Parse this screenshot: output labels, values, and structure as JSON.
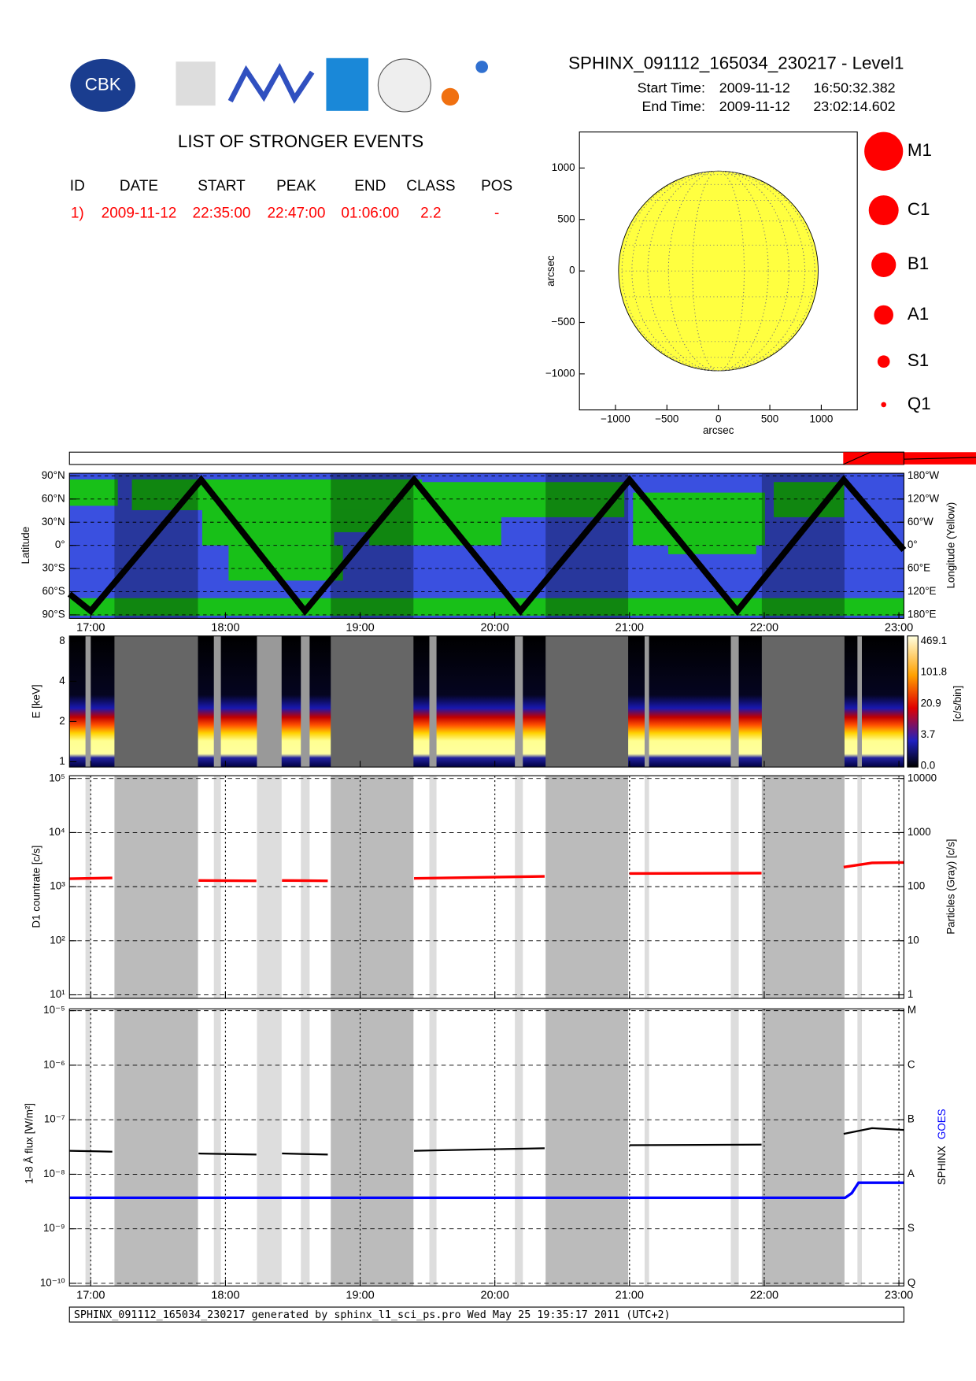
{
  "chart_data": {
    "type": "solar-report",
    "header": {
      "title": "SPHINX_091112_165034_230217 - Level1",
      "start_label": "Start Time:",
      "start_date": "2009-11-12",
      "start_time": "16:50:32.382",
      "end_label": "End Time:",
      "end_date": "2009-11-12",
      "end_time": "23:02:14.602",
      "logo_text": "CBK"
    },
    "events": {
      "title": "LIST OF STRONGER EVENTS",
      "columns": [
        "ID",
        "DATE",
        "START",
        "PEAK",
        "END",
        "CLASS",
        "POS"
      ],
      "rows": [
        [
          "1)",
          "2009-11-12",
          "22:35:00",
          "22:47:00",
          "01:06:00",
          "2.2",
          "-"
        ]
      ]
    },
    "sun_plot": {
      "xlabel": "arcsec",
      "ylabel": "arcsec",
      "xlim": [
        -1350,
        1350
      ],
      "ylim": [
        -1350,
        1350
      ],
      "xticks": [
        {
          "value": -1000,
          "label": "−1000"
        },
        {
          "value": -500,
          "label": "−500"
        },
        0,
        500,
        1000
      ],
      "yticks": [
        {
          "value": -1000,
          "label": "−1000"
        },
        {
          "value": -500,
          "label": "−500"
        },
        0,
        500,
        1000
      ],
      "disk_radius": 970,
      "disk_color": "#ffff40",
      "legend": [
        "M1",
        "C1",
        "B1",
        "A1",
        "S1",
        "Q1"
      ],
      "legend_color": "#ff0000"
    },
    "time": {
      "xlim": [
        16.842,
        23.037
      ],
      "xticks": [
        {
          "value": 17,
          "label": "17:00"
        },
        {
          "value": 18,
          "label": "18:00"
        },
        {
          "value": 19,
          "label": "19:00"
        },
        {
          "value": 20,
          "label": "20:00"
        },
        {
          "value": 21,
          "label": "21:00"
        },
        {
          "value": 22,
          "label": "22:00"
        },
        {
          "value": 23,
          "label": "23:00"
        }
      ],
      "eclipse_intervals": [
        [
          17.176,
          17.796
        ],
        [
          18.782,
          19.396
        ],
        [
          20.377,
          20.99
        ],
        [
          21.982,
          22.596
        ]
      ],
      "gap_intervals": [
        [
          16.961,
          17.0
        ],
        [
          17.914,
          17.966
        ],
        [
          18.234,
          18.417
        ],
        [
          18.56,
          18.625
        ],
        [
          19.514,
          19.567
        ],
        [
          20.149,
          20.208
        ],
        [
          21.112,
          21.145
        ],
        [
          21.752,
          21.811
        ],
        [
          22.692,
          22.725
        ]
      ]
    },
    "orbit": {
      "ylabel": "Latitude",
      "y2label": "Longitude (Yellow)",
      "ylim": [
        -90,
        90
      ],
      "y2lim": [
        180,
        -180
      ],
      "yticks": [
        {
          "value": 90,
          "label": "90°N"
        },
        {
          "value": 60,
          "label": "60°N"
        },
        {
          "value": 30,
          "label": "30°N"
        },
        {
          "value": 0,
          "label": "0°"
        },
        {
          "value": -30,
          "label": "30°S"
        },
        {
          "value": -60,
          "label": "60°S"
        },
        {
          "value": -90,
          "label": "90°S"
        }
      ],
      "y2ticks": [
        {
          "value": -180,
          "label": "180°W"
        },
        {
          "value": -120,
          "label": "120°W"
        },
        {
          "value": -60,
          "label": "60°W"
        },
        {
          "value": 0,
          "label": "0°"
        },
        {
          "value": 60,
          "label": "60°E"
        },
        {
          "value": 120,
          "label": "120°E"
        },
        {
          "value": 180,
          "label": "180°E"
        }
      ],
      "x": [
        16.842,
        17.0,
        17.82,
        18.59,
        19.4,
        20.19,
        21.0,
        21.8,
        22.59,
        23.037
      ],
      "latitude": [
        -63,
        -85,
        85,
        -85,
        85,
        -85,
        85,
        -85,
        85,
        -6
      ]
    },
    "spectrum": {
      "ylabel": "E [keV]",
      "ylim": [
        0.913,
        8.74
      ],
      "yticks": [
        1,
        2,
        4,
        8
      ],
      "colorbar_label": "[c/s/bin]",
      "colorbar_ticks": [
        469.1,
        101.8,
        20.9,
        3.7,
        {
          "value": 0,
          "label": "0.0"
        }
      ]
    },
    "countrate": {
      "ylabel": "D1 countrate [c/s]",
      "y2label": "Particles (Gray) [c/s]",
      "ylim": [
        10,
        100000
      ],
      "y2lim": [
        1,
        10000
      ],
      "yticks": [
        {
          "value": 10,
          "label": "10¹"
        },
        {
          "value": 100,
          "label": "10²"
        },
        {
          "value": 1000,
          "label": "10³"
        },
        {
          "value": 10000,
          "label": "10⁴"
        },
        {
          "value": 100000,
          "label": "10⁵"
        }
      ],
      "y2ticks": [
        1,
        10,
        100,
        1000,
        10000
      ],
      "color": "#ff0000",
      "x": [
        16.842,
        17.16,
        17.16,
        17.8,
        18.23,
        18.23,
        18.42,
        18.76,
        18.76,
        19.4,
        20.37,
        20.37,
        21.0,
        21.98,
        21.98,
        22.59,
        22.8,
        23.037
      ],
      "values": [
        1400,
        1450,
        null,
        1300,
        1280,
        null,
        1300,
        1280,
        null,
        1420,
        1550,
        null,
        1750,
        1780,
        null,
        2300,
        2750,
        2800
      ]
    },
    "flux": {
      "ylabel": "1–8 Å flux [W/m²]",
      "y2label_sphinx": "SPHINX",
      "y2label_goes": "GOES",
      "ylim": [
        1e-10,
        1e-05
      ],
      "yticks": [
        {
          "value": 1e-10,
          "label": "10⁻¹⁰"
        },
        {
          "value": 1e-09,
          "label": "10⁻⁹"
        },
        {
          "value": 1e-08,
          "label": "10⁻⁸"
        },
        {
          "value": 1e-07,
          "label": "10⁻⁷"
        },
        {
          "value": 1e-06,
          "label": "10⁻⁶"
        },
        {
          "value": 1e-05,
          "label": "10⁻⁵"
        }
      ],
      "y2ticks": [
        {
          "value": 1e-10,
          "label": "Q"
        },
        {
          "value": 1e-09,
          "label": "S"
        },
        {
          "value": 1e-08,
          "label": "A"
        },
        {
          "value": 1e-07,
          "label": "B"
        },
        {
          "value": 1e-06,
          "label": "C"
        },
        {
          "value": 1e-05,
          "label": "M"
        }
      ],
      "series": [
        {
          "name": "SPHINX",
          "color": "#000000",
          "x": [
            16.842,
            17.16,
            17.16,
            17.8,
            18.23,
            18.23,
            18.42,
            18.76,
            18.76,
            19.4,
            20.37,
            20.37,
            21.0,
            21.98,
            21.98,
            22.59,
            22.8,
            23.037
          ],
          "values": [
            2.7e-08,
            2.6e-08,
            null,
            2.4e-08,
            2.3e-08,
            null,
            2.4e-08,
            2.3e-08,
            null,
            2.7e-08,
            3e-08,
            null,
            3.4e-08,
            3.5e-08,
            null,
            5.5e-08,
            7e-08,
            6.5e-08
          ]
        },
        {
          "name": "GOES",
          "color": "#0000ff",
          "x": [
            16.842,
            22.6,
            22.65,
            22.7,
            23.037
          ],
          "values": [
            3.7e-09,
            3.7e-09,
            4.5e-09,
            7e-09,
            7e-09
          ]
        }
      ]
    },
    "footer": "SPHINX_091112_165034_230217 generated by sphinx_l1_sci_ps.pro Wed May 25 19:35:17 2011 (UTC+2)"
  }
}
